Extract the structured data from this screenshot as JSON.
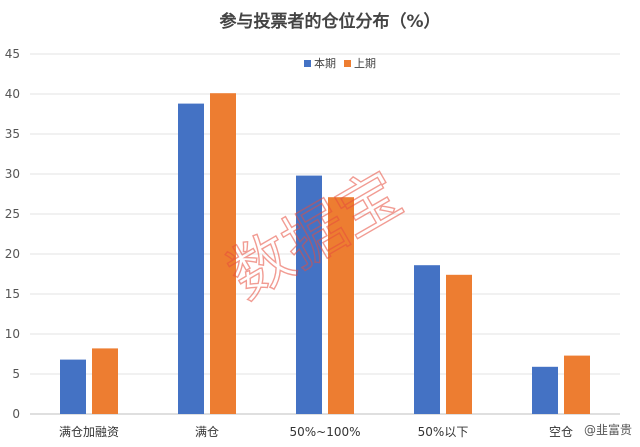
{
  "chart_data": {
    "type": "bar",
    "title": "参与投票者的仓位分布（%）",
    "categories": [
      "满仓加融资",
      "满仓",
      "50%~100%",
      "50%以下",
      "空仓"
    ],
    "series": [
      {
        "name": "本期",
        "values": [
          6.8,
          38.8,
          29.8,
          18.6,
          5.9
        ],
        "color": "#4472C4"
      },
      {
        "name": "上期",
        "values": [
          8.2,
          40.1,
          27.1,
          17.4,
          7.3
        ],
        "color": "#ED7D31"
      }
    ],
    "yticks": [
      "0",
      "5",
      "10",
      "15",
      "20",
      "25",
      "30",
      "35",
      "40",
      "45"
    ],
    "ylim": [
      0,
      45
    ],
    "grid": true,
    "legend_position": "top-center"
  },
  "watermark": "数据宝",
  "credit": "@韭富贵"
}
